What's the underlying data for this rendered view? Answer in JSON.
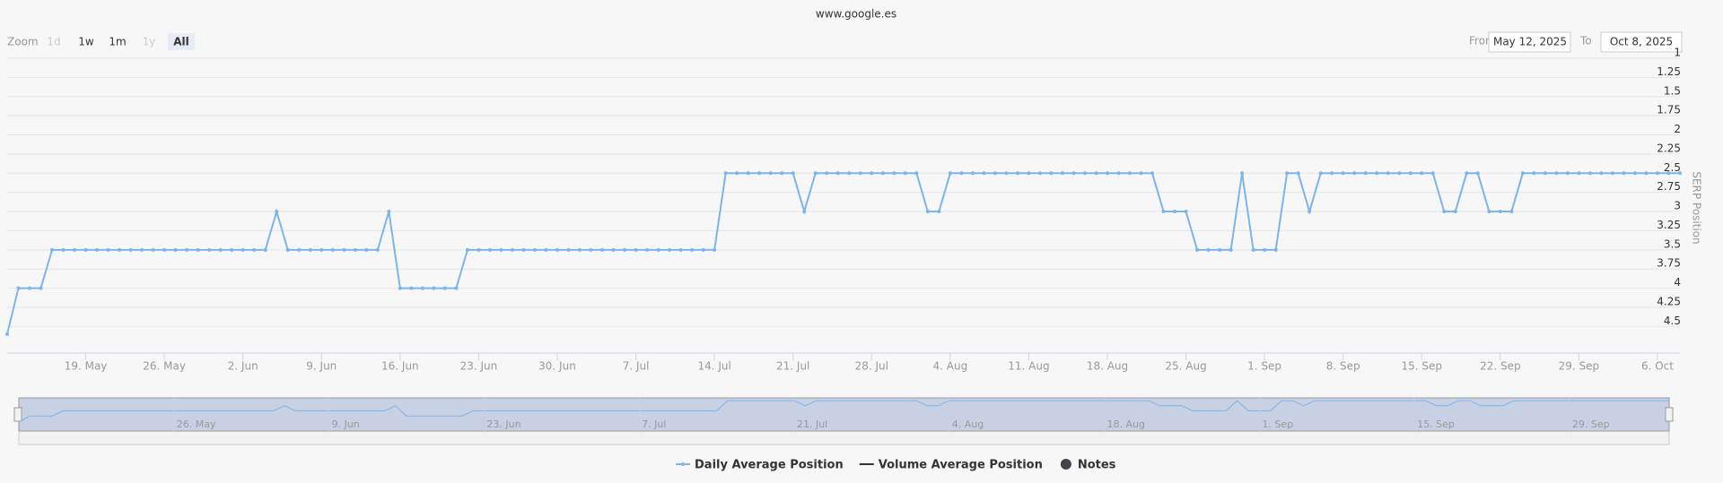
{
  "chart_data": {
    "type": "line",
    "title": "www.google.es",
    "zoom": {
      "label": "Zoom",
      "buttons": [
        "1d",
        "1w",
        "1m",
        "1y",
        "All"
      ],
      "active": "All",
      "disabled": [
        "1d",
        "1y"
      ]
    },
    "range": {
      "from_label": "From",
      "from": "May 12, 2025",
      "to_label": "To",
      "to": "Oct 8, 2025"
    },
    "y_axis_title": "SERP Position",
    "y_reversed": true,
    "grid": true,
    "ylim": [
      1,
      4.8
    ],
    "yticks": [
      1,
      1.25,
      1.5,
      1.75,
      2,
      2.25,
      2.5,
      2.75,
      3,
      3.25,
      3.5,
      3.75,
      4,
      4.25,
      4.5
    ],
    "xlim": [
      "2025-05-12",
      "2025-10-08"
    ],
    "xticks": [
      {
        "value": "2025-05-19",
        "label": "19. May"
      },
      {
        "value": "2025-05-26",
        "label": "26. May"
      },
      {
        "value": "2025-06-02",
        "label": "2. Jun"
      },
      {
        "value": "2025-06-09",
        "label": "9. Jun"
      },
      {
        "value": "2025-06-16",
        "label": "16. Jun"
      },
      {
        "value": "2025-06-23",
        "label": "23. Jun"
      },
      {
        "value": "2025-06-30",
        "label": "30. Jun"
      },
      {
        "value": "2025-07-07",
        "label": "7. Jul"
      },
      {
        "value": "2025-07-14",
        "label": "14. Jul"
      },
      {
        "value": "2025-07-21",
        "label": "21. Jul"
      },
      {
        "value": "2025-07-28",
        "label": "28. Jul"
      },
      {
        "value": "2025-08-04",
        "label": "4. Aug"
      },
      {
        "value": "2025-08-11",
        "label": "11. Aug"
      },
      {
        "value": "2025-08-18",
        "label": "18. Aug"
      },
      {
        "value": "2025-08-25",
        "label": "25. Aug"
      },
      {
        "value": "2025-09-01",
        "label": "1. Sep"
      },
      {
        "value": "2025-09-08",
        "label": "8. Sep"
      },
      {
        "value": "2025-09-15",
        "label": "15. Sep"
      },
      {
        "value": "2025-09-22",
        "label": "22. Sep"
      },
      {
        "value": "2025-09-29",
        "label": "29. Sep"
      },
      {
        "value": "2025-10-06",
        "label": "6. Oct"
      }
    ],
    "navigator_xticks": [
      {
        "value": "2025-05-26",
        "label": "26. May"
      },
      {
        "value": "2025-06-09",
        "label": "9. Jun"
      },
      {
        "value": "2025-06-23",
        "label": "23. Jun"
      },
      {
        "value": "2025-07-07",
        "label": "7. Jul"
      },
      {
        "value": "2025-07-21",
        "label": "21. Jul"
      },
      {
        "value": "2025-08-04",
        "label": "4. Aug"
      },
      {
        "value": "2025-08-18",
        "label": "18. Aug"
      },
      {
        "value": "2025-09-01",
        "label": "1. Sep"
      },
      {
        "value": "2025-09-15",
        "label": "15. Sep"
      },
      {
        "value": "2025-09-29",
        "label": "29. Sep"
      }
    ],
    "x": [
      "2025-05-12",
      "2025-05-13",
      "2025-05-14",
      "2025-05-15",
      "2025-05-16",
      "2025-05-17",
      "2025-05-18",
      "2025-05-19",
      "2025-05-20",
      "2025-05-21",
      "2025-05-22",
      "2025-05-23",
      "2025-05-24",
      "2025-05-25",
      "2025-05-26",
      "2025-05-27",
      "2025-05-28",
      "2025-05-29",
      "2025-05-30",
      "2025-05-31",
      "2025-06-01",
      "2025-06-02",
      "2025-06-03",
      "2025-06-04",
      "2025-06-05",
      "2025-06-06",
      "2025-06-07",
      "2025-06-08",
      "2025-06-09",
      "2025-06-10",
      "2025-06-11",
      "2025-06-12",
      "2025-06-13",
      "2025-06-14",
      "2025-06-15",
      "2025-06-16",
      "2025-06-17",
      "2025-06-18",
      "2025-06-19",
      "2025-06-20",
      "2025-06-21",
      "2025-06-22",
      "2025-06-23",
      "2025-06-24",
      "2025-06-25",
      "2025-06-26",
      "2025-06-27",
      "2025-06-28",
      "2025-06-29",
      "2025-06-30",
      "2025-07-01",
      "2025-07-02",
      "2025-07-03",
      "2025-07-04",
      "2025-07-05",
      "2025-07-06",
      "2025-07-07",
      "2025-07-08",
      "2025-07-09",
      "2025-07-10",
      "2025-07-11",
      "2025-07-12",
      "2025-07-13",
      "2025-07-14",
      "2025-07-15",
      "2025-07-16",
      "2025-07-17",
      "2025-07-18",
      "2025-07-19",
      "2025-07-20",
      "2025-07-21",
      "2025-07-22",
      "2025-07-23",
      "2025-07-24",
      "2025-07-25",
      "2025-07-26",
      "2025-07-27",
      "2025-07-28",
      "2025-07-29",
      "2025-07-30",
      "2025-07-31",
      "2025-08-01",
      "2025-08-02",
      "2025-08-03",
      "2025-08-04",
      "2025-08-05",
      "2025-08-06",
      "2025-08-07",
      "2025-08-08",
      "2025-08-09",
      "2025-08-10",
      "2025-08-11",
      "2025-08-12",
      "2025-08-13",
      "2025-08-14",
      "2025-08-15",
      "2025-08-16",
      "2025-08-17",
      "2025-08-18",
      "2025-08-19",
      "2025-08-20",
      "2025-08-21",
      "2025-08-22",
      "2025-08-23",
      "2025-08-24",
      "2025-08-25",
      "2025-08-26",
      "2025-08-27",
      "2025-08-28",
      "2025-08-29",
      "2025-08-30",
      "2025-08-31",
      "2025-09-01",
      "2025-09-02",
      "2025-09-03",
      "2025-09-04",
      "2025-09-05",
      "2025-09-06",
      "2025-09-07",
      "2025-09-08",
      "2025-09-09",
      "2025-09-10",
      "2025-09-11",
      "2025-09-12",
      "2025-09-13",
      "2025-09-14",
      "2025-09-15",
      "2025-09-16",
      "2025-09-17",
      "2025-09-18",
      "2025-09-19",
      "2025-09-20",
      "2025-09-21",
      "2025-09-22",
      "2025-09-23",
      "2025-09-24",
      "2025-09-25",
      "2025-09-26",
      "2025-09-27",
      "2025-09-28",
      "2025-09-29",
      "2025-09-30",
      "2025-10-01",
      "2025-10-02",
      "2025-10-03",
      "2025-10-04",
      "2025-10-05",
      "2025-10-06",
      "2025-10-07",
      "2025-10-08"
    ],
    "series": [
      {
        "name": "Daily Average Position",
        "color": "#7cb5ec",
        "values": [
          4.6,
          4,
          4,
          4,
          3.5,
          3.5,
          3.5,
          3.5,
          3.5,
          3.5,
          3.5,
          3.5,
          3.5,
          3.5,
          3.5,
          3.5,
          3.5,
          3.5,
          3.5,
          3.5,
          3.5,
          3.5,
          3.5,
          3.5,
          3,
          3.5,
          3.5,
          3.5,
          3.5,
          3.5,
          3.5,
          3.5,
          3.5,
          3.5,
          3,
          4,
          4,
          4,
          4,
          4,
          4,
          3.5,
          3.5,
          3.5,
          3.5,
          3.5,
          3.5,
          3.5,
          3.5,
          3.5,
          3.5,
          3.5,
          3.5,
          3.5,
          3.5,
          3.5,
          3.5,
          3.5,
          3.5,
          3.5,
          3.5,
          3.5,
          3.5,
          3.5,
          2.5,
          2.5,
          2.5,
          2.5,
          2.5,
          2.5,
          2.5,
          3,
          2.5,
          2.5,
          2.5,
          2.5,
          2.5,
          2.5,
          2.5,
          2.5,
          2.5,
          2.5,
          3,
          3,
          2.5,
          2.5,
          2.5,
          2.5,
          2.5,
          2.5,
          2.5,
          2.5,
          2.5,
          2.5,
          2.5,
          2.5,
          2.5,
          2.5,
          2.5,
          2.5,
          2.5,
          2.5,
          2.5,
          3,
          3,
          3,
          3.5,
          3.5,
          3.5,
          3.5,
          2.5,
          3.5,
          3.5,
          3.5,
          2.5,
          2.5,
          3,
          2.5,
          2.5,
          2.5,
          2.5,
          2.5,
          2.5,
          2.5,
          2.5,
          2.5,
          2.5,
          2.5,
          3,
          3,
          2.5,
          2.5,
          3,
          3,
          3,
          2.5,
          2.5,
          2.5,
          2.5,
          2.5,
          2.5,
          2.5,
          2.5,
          2.5,
          2.5,
          2.5,
          2.5,
          2.5,
          2.5,
          2.5
        ]
      }
    ],
    "legend_extra": [
      {
        "name": "Volume Average Position",
        "color": "#333333",
        "symbol": "line"
      },
      {
        "name": "Notes",
        "color": "#434348",
        "symbol": "circle"
      }
    ]
  }
}
